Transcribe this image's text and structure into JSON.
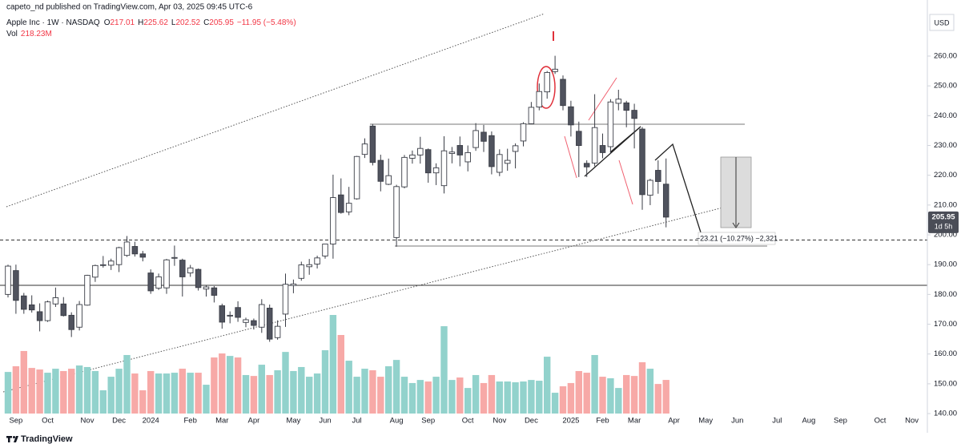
{
  "header": {
    "published": "capeto_nd published on TradingView.com, Apr 03, 2025 09:45 UTC-6"
  },
  "legend": {
    "symbol": "Apple Inc · 1W · NASDAQ",
    "ohlc": [
      {
        "key": "O",
        "value": "217.01"
      },
      {
        "key": "H",
        "value": "225.62"
      },
      {
        "key": "L",
        "value": "202.52"
      },
      {
        "key": "C",
        "value": "205.95"
      }
    ],
    "change": "−11.95 (−5.48%)",
    "volume_key": "Vol",
    "volume_value": "218.23M"
  },
  "annotations": {
    "measure": "−23.21 (−10.27%) −2,321",
    "countdown": "1d 5h",
    "currency": "USD"
  },
  "footer": {
    "brand": "TradingView"
  },
  "chart_data": {
    "type": "candlestick",
    "categories": [
      null,
      "Sep",
      null,
      null,
      null,
      "Oct",
      null,
      null,
      null,
      null,
      "Nov",
      null,
      null,
      null,
      "Dec",
      null,
      null,
      null,
      "2024",
      null,
      null,
      null,
      null,
      "Feb",
      null,
      null,
      null,
      "Mar",
      null,
      null,
      null,
      "Apr",
      null,
      null,
      null,
      null,
      "May",
      null,
      null,
      null,
      "Jun",
      null,
      null,
      null,
      "Jul",
      null,
      null,
      null,
      null,
      "Aug",
      null,
      null,
      null,
      "Sep",
      null,
      null,
      null,
      null,
      "Oct",
      null,
      null,
      null,
      "Nov",
      null,
      null,
      null,
      "Dec",
      null,
      null,
      null,
      null,
      "2025",
      null,
      null,
      null,
      "Feb",
      null,
      null,
      null,
      "Mar",
      null,
      null,
      null,
      null,
      "Apr",
      null,
      null,
      null,
      "May",
      null,
      null,
      null,
      "Jun",
      null,
      null,
      null,
      null,
      "Jul",
      null,
      null,
      null,
      "Aug",
      null,
      null,
      null,
      "Sep",
      null,
      null,
      null,
      null,
      "Oct",
      null,
      null,
      null,
      "Nov",
      null
    ],
    "open": [
      180,
      188,
      179.5,
      176.5,
      174.2,
      171.2,
      176.8,
      176.8,
      173,
      169,
      176.4,
      185.8,
      189.9,
      189.8,
      190,
      193.1,
      196.1,
      193.6,
      187.2,
      182.1,
      182.2,
      192.3,
      191.5,
      187.2,
      188.4,
      181.8,
      182.2,
      176.2,
      172.9,
      175.6,
      170.6,
      171.2,
      169,
      175.4,
      165.5,
      173.4,
      183,
      185.4,
      189.3,
      190.2,
      192.9,
      196.9,
      213.4,
      207.7,
      212.1,
      227,
      236.5,
      225,
      216.96,
      199.1,
      216.1,
      225.7,
      226.8,
      228.6,
      220.8,
      216.5,
      227.3,
      230,
      224.5,
      229.3,
      234.45,
      233.3,
      220.99,
      224,
      228,
      231.5,
      237.3,
      242.9,
      247.99,
      254.8,
      252.2,
      242.98,
      234.75,
      224,
      224.1,
      229.99,
      229.6,
      244.15,
      244.3,
      241.8,
      235.5,
      213.3,
      221.65,
      217.01,
      null,
      null,
      null,
      null,
      null,
      null,
      null,
      null,
      null,
      null,
      null,
      null,
      null,
      null,
      null,
      null,
      null,
      null,
      null,
      null,
      null,
      null,
      null,
      null,
      null,
      null,
      null,
      null,
      null,
      null,
      null,
      null
    ],
    "high": [
      190,
      190,
      180.5,
      179.7,
      177,
      177.9,
      182.3,
      179.1,
      174,
      177.8,
      186.6,
      190,
      192.9,
      192,
      196,
      199.6,
      197.7,
      194.6,
      188.4,
      187,
      191.95,
      196.4,
      192,
      189.9,
      188.7,
      183,
      182.8,
      176.9,
      174.3,
      177.7,
      172.2,
      171.9,
      178.4,
      176.6,
      171.3,
      187,
      185,
      191,
      191.9,
      193,
      196.9,
      220.2,
      218.95,
      216.1,
      226.5,
      232.4,
      237.2,
      226.9,
      225.6,
      216.8,
      226.8,
      228.3,
      232.9,
      229,
      224,
      233.1,
      229.5,
      233,
      230,
      237.5,
      236.9,
      234.7,
      228.7,
      228.9,
      230.7,
      237.8,
      244.6,
      250.8,
      255,
      260.1,
      253.5,
      245,
      238,
      225,
      247.2,
      234,
      245.55,
      248.7,
      244.98,
      244,
      236.2,
      218.8,
      225,
      225.62,
      null,
      null,
      null,
      null,
      null,
      null,
      null,
      null,
      null,
      null,
      null,
      null,
      null,
      null,
      null,
      null,
      null,
      null,
      null,
      null,
      null,
      null,
      null,
      null,
      null,
      null,
      null,
      null,
      null,
      null,
      null,
      null
    ],
    "low": [
      179,
      173.5,
      173.5,
      173.9,
      167.6,
      170.8,
      175.8,
      172.6,
      165.7,
      167.9,
      176.2,
      184.2,
      189,
      188.2,
      187.5,
      192.6,
      192.7,
      191.1,
      180.2,
      181.5,
      180.2,
      189.6,
      179.3,
      185.9,
      181.3,
      179.3,
      177.3,
      168.5,
      170.3,
      170.8,
      169,
      168.2,
      167.1,
      164.1,
      164.8,
      169.1,
      180.4,
      184.6,
      186.6,
      188.7,
      192,
      192,
      207.1,
      206.6,
      211.8,
      225.8,
      223.3,
      214.6,
      216.7,
      196,
      215.6,
      223.9,
      223.9,
      217.5,
      216.7,
      213.9,
      224,
      223,
      221.3,
      228.2,
      227.8,
      220.3,
      219.7,
      221.5,
      222.3,
      229.7,
      237.2,
      241.8,
      245.7,
      254,
      241.8,
      233,
      219.4,
      219.4,
      223,
      225.7,
      227.2,
      241.8,
      236.1,
      229,
      208.4,
      209.97,
      213.8,
      202.52,
      null,
      null,
      null,
      null,
      null,
      null,
      null,
      null,
      null,
      null,
      null,
      null,
      null,
      null,
      null,
      null,
      null,
      null,
      null,
      null,
      null,
      null,
      null,
      null,
      null,
      null,
      null,
      null,
      null,
      null,
      null,
      null
    ],
    "close": [
      189.5,
      178,
      175,
      174.8,
      171.2,
      177.5,
      178.9,
      172.9,
      168.2,
      176.6,
      186.4,
      189.7,
      189.97,
      191.2,
      195.7,
      197.6,
      193.6,
      192.5,
      181.2,
      185.9,
      191.6,
      192.4,
      185.9,
      188.9,
      182.3,
      182.5,
      179.7,
      170.7,
      173,
      172.3,
      171.5,
      169.6,
      176.6,
      165,
      169.3,
      183.4,
      183.5,
      189.9,
      189.98,
      192.25,
      196.9,
      212.5,
      207.5,
      210.6,
      226.3,
      230.5,
      224.3,
      217.96,
      219.86,
      216.2,
      226,
      226.8,
      229,
      220.8,
      222.5,
      228.2,
      227.8,
      226.8,
      227.6,
      235,
      231.4,
      222.9,
      226.96,
      225,
      229.9,
      237.3,
      242.8,
      248.1,
      254.5,
      255.6,
      243.4,
      236.9,
      229.98,
      222.8,
      236,
      227.6,
      244.6,
      245.55,
      241.8,
      239.07,
      213.5,
      218.3,
      217.9,
      205.95,
      null,
      null,
      null,
      null,
      null,
      null,
      null,
      null,
      null,
      null,
      null,
      null,
      null,
      null,
      null,
      null,
      null,
      null,
      null,
      null,
      null,
      null,
      null,
      null,
      null,
      null,
      null,
      null,
      null,
      null,
      null,
      null
    ],
    "volume": [
      270,
      307,
      406,
      296,
      286,
      265,
      291,
      276,
      291,
      312,
      302,
      276,
      151,
      239,
      291,
      380,
      260,
      151,
      276,
      260,
      260,
      265,
      291,
      265,
      265,
      187,
      364,
      390,
      374,
      364,
      250,
      244,
      317,
      250,
      281,
      400,
      276,
      302,
      239,
      260,
      411,
      640,
      510,
      343,
      239,
      291,
      281,
      239,
      307,
      348,
      239,
      198,
      218,
      208,
      239,
      567,
      218,
      234,
      166,
      250,
      198,
      250,
      208,
      208,
      203,
      208,
      218,
      213,
      369,
      135,
      177,
      198,
      276,
      265,
      380,
      239,
      229,
      166,
      250,
      244,
      333,
      291,
      192,
      218.23,
      null,
      null,
      null,
      null,
      null,
      null,
      null,
      null,
      null,
      null,
      null,
      null,
      null,
      null,
      null,
      null,
      null,
      null,
      null,
      null,
      null,
      null,
      null,
      null,
      null,
      null,
      null,
      null,
      null,
      null,
      null,
      null
    ],
    "up_color": "#ffffff",
    "down_color": "#50535e",
    "volume_up_color": "#92d2cc",
    "volume_down_color": "#f7a9a7",
    "ylim": [
      138,
      276
    ],
    "yticks": [
      {
        "value": 140,
        "label": "140.00"
      },
      {
        "value": 150,
        "label": "150.00"
      },
      {
        "value": 160,
        "label": "160.00"
      },
      {
        "value": 170,
        "label": "170.00"
      },
      {
        "value": 180,
        "label": "180.00"
      },
      {
        "value": 190,
        "label": "190.00"
      },
      {
        "value": 200,
        "label": "200.00"
      },
      {
        "value": 210,
        "label": "210.00"
      },
      {
        "value": 220,
        "label": "220.00"
      },
      {
        "value": 230,
        "label": "230.00"
      },
      {
        "value": 240,
        "label": "240.00"
      },
      {
        "value": 250,
        "label": "250.00"
      },
      {
        "value": 260,
        "label": "260.00"
      }
    ],
    "grid": false
  }
}
